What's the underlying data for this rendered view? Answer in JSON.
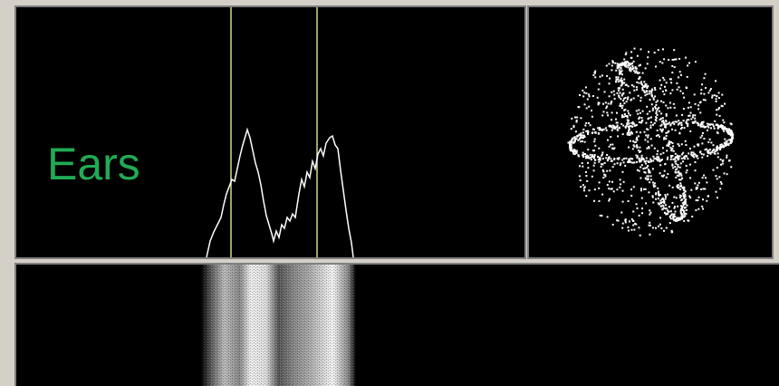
{
  "label": "Ears"
}
